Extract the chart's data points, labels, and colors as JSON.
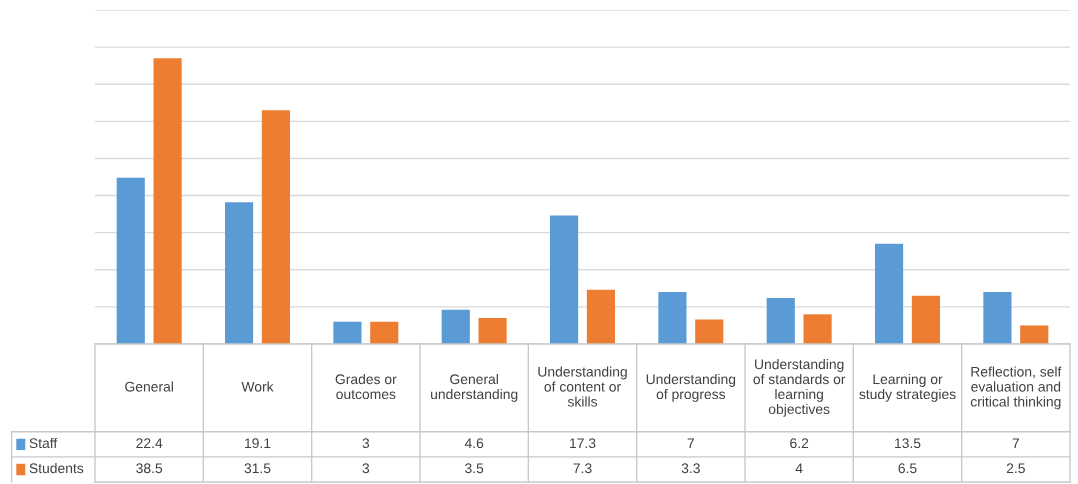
{
  "chart_data": {
    "type": "bar",
    "categories": [
      "General",
      "Work",
      "Grades or\noutcomes",
      "General\nunderstanding",
      "Understanding\nof content or\nskills",
      "Understanding\nof progress",
      "Understanding\nof standards or\nlearning\nobjectives",
      "Learning or\nstudy strategies",
      "Reflection, self\nevaluation and\ncritical thinking"
    ],
    "series": [
      {
        "name": "Staff",
        "color": "#5b9bd5",
        "values": [
          22.4,
          19.1,
          3,
          4.6,
          17.3,
          7,
          6.2,
          13.5,
          7
        ]
      },
      {
        "name": "Students",
        "color": "#ed7d31",
        "values": [
          38.5,
          31.5,
          3,
          3.5,
          7.3,
          3.3,
          4,
          6.5,
          2.5
        ]
      }
    ],
    "ylim": [
      0,
      45
    ],
    "yticks": [
      {
        "value": 0,
        "label": null
      },
      {
        "value": 5,
        "label": null
      },
      {
        "value": 10,
        "label": null
      },
      {
        "value": 15,
        "label": null
      },
      {
        "value": 20,
        "label": null
      },
      {
        "value": 25,
        "label": null
      },
      {
        "value": 30,
        "label": null
      },
      {
        "value": 35,
        "label": null
      },
      {
        "value": 40,
        "label": null
      },
      {
        "value": 45,
        "label": null
      }
    ],
    "grid": "y",
    "data_labels": true,
    "legend": "bottom"
  }
}
